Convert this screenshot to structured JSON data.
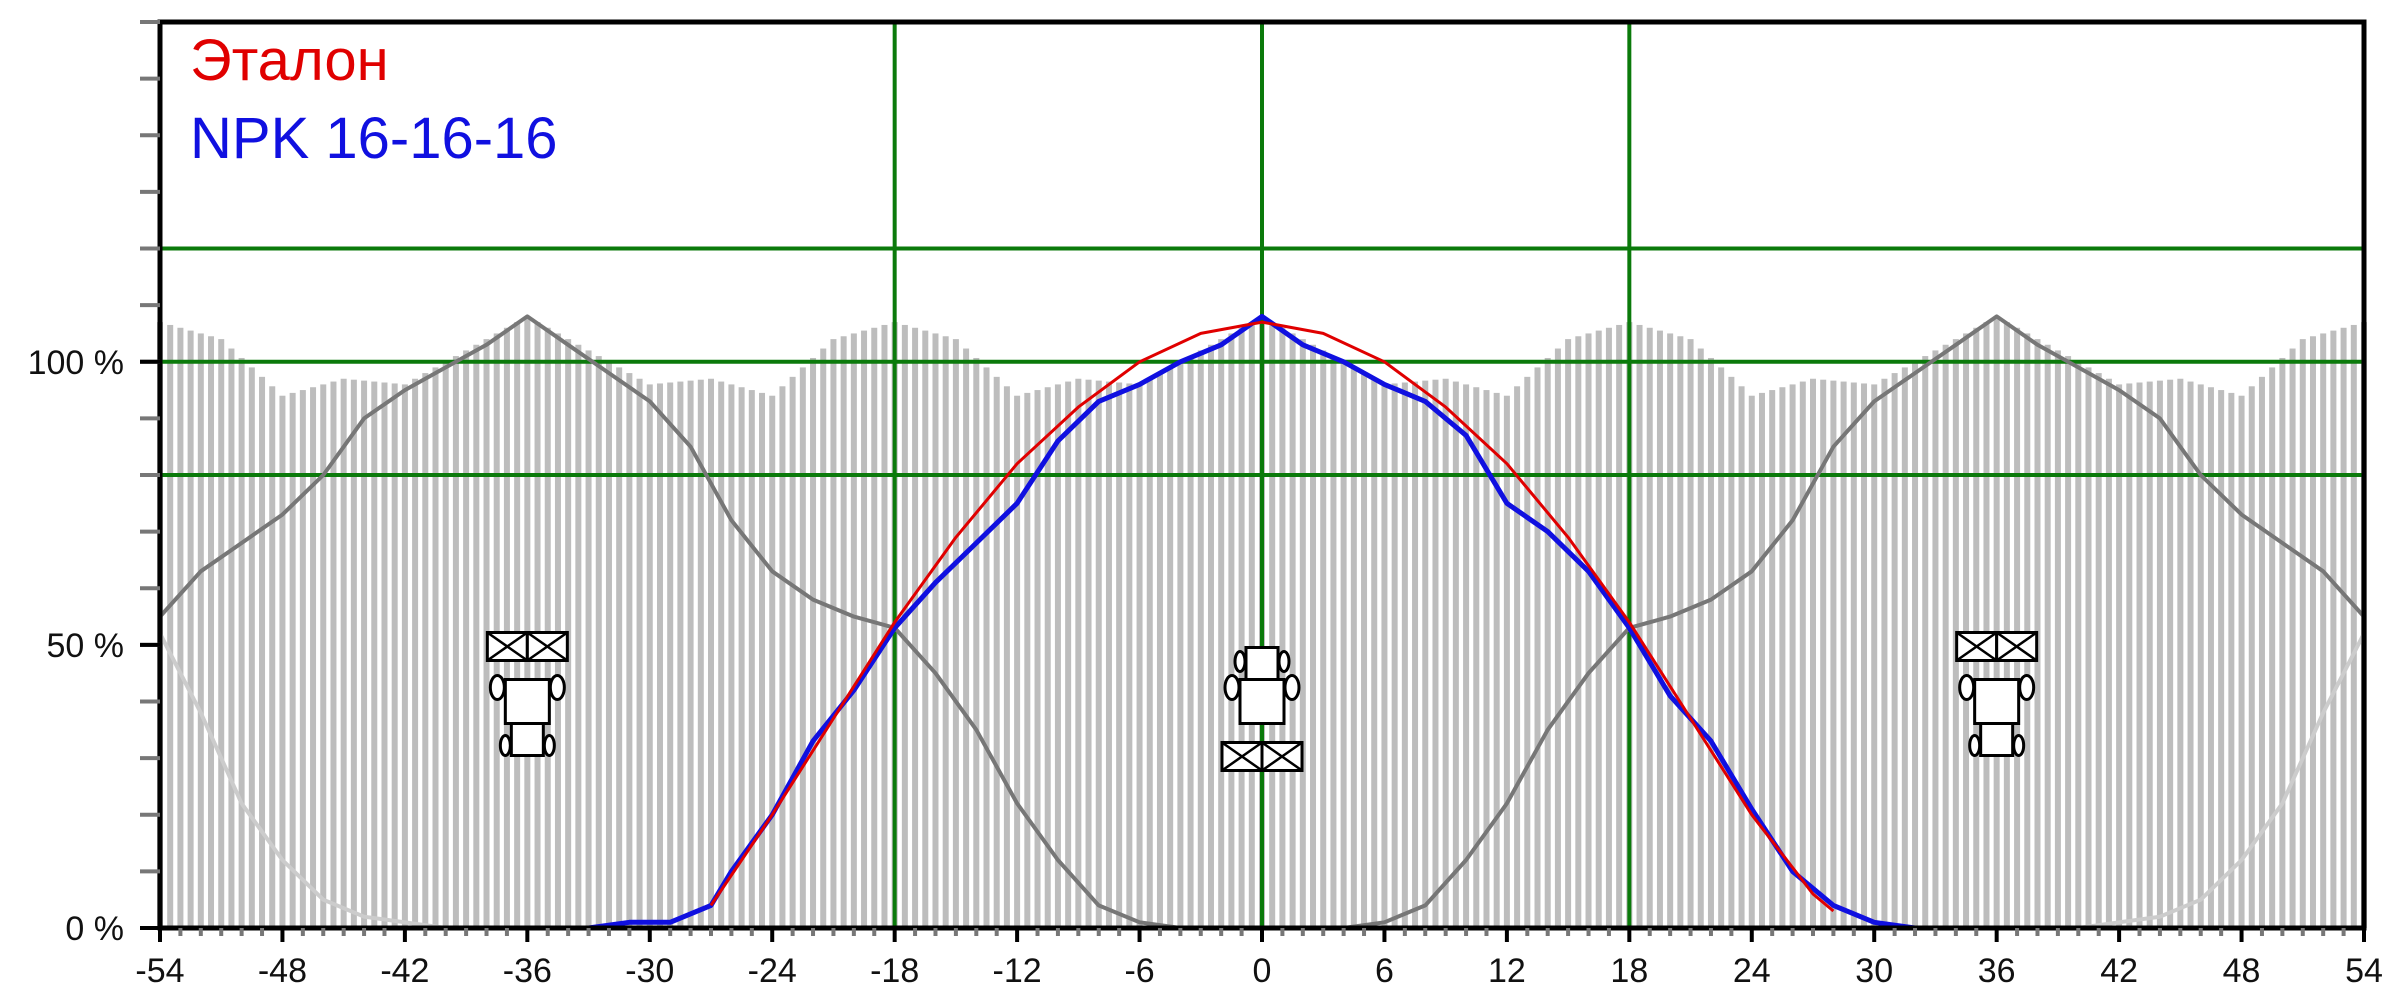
{
  "chart_data": {
    "type": "line",
    "title": "",
    "xlabel": "",
    "ylabel": "",
    "xlim": [
      -54,
      54
    ],
    "ylim": [
      0,
      160
    ],
    "x_ticks": [
      -54,
      -48,
      -42,
      -36,
      -30,
      -24,
      -18,
      -12,
      -6,
      0,
      6,
      12,
      18,
      24,
      30,
      36,
      42,
      48,
      54
    ],
    "y_ticks": [
      {
        "value": 0,
        "label": "0 %"
      },
      {
        "value": 50,
        "label": "50 %"
      },
      {
        "value": 100,
        "label": "100 %"
      }
    ],
    "green_gridlines": {
      "x": [
        -18,
        0,
        18
      ],
      "y": [
        80,
        100,
        120
      ]
    },
    "legend": {
      "position": "top-left",
      "entries": [
        {
          "label": "Эталон",
          "color": "#e00000"
        },
        {
          "label": "NPK 16-16-16",
          "color": "#1010e0"
        }
      ]
    },
    "series": [
      {
        "name": "Эталон",
        "color": "#e00000",
        "x": [
          -27,
          -24,
          -21,
          -18,
          -15,
          -12,
          -9,
          -6,
          -3,
          0,
          3,
          6,
          9,
          12,
          15,
          18,
          21,
          24,
          27,
          28
        ],
        "y": [
          4,
          20,
          37,
          54,
          69,
          82,
          92,
          100,
          105,
          107,
          105,
          100,
          92,
          82,
          69,
          54,
          37,
          20,
          6,
          3
        ]
      },
      {
        "name": "NPK 16-16-16",
        "color": "#1010e0",
        "x": [
          -37,
          -33,
          -31,
          -29,
          -27,
          -26,
          -24,
          -22,
          -20,
          -18,
          -16,
          -14,
          -12,
          -10,
          -8,
          -6,
          -4,
          -2,
          0,
          2,
          4,
          6,
          8,
          10,
          12,
          14,
          16,
          18,
          20,
          22,
          24,
          26,
          28,
          30,
          32,
          37
        ],
        "y": [
          0,
          0,
          1,
          1,
          4,
          10,
          20,
          33,
          42,
          53,
          61,
          68,
          75,
          86,
          93,
          96,
          100,
          103,
          108,
          103,
          100,
          96,
          93,
          87,
          75,
          70,
          63,
          53,
          41,
          33,
          21,
          10,
          4,
          1,
          0,
          0
        ]
      },
      {
        "name": "",
        "color": "#777777",
        "x": [
          -54,
          -52,
          -50,
          -48,
          -46,
          -44,
          -42,
          -40,
          -38,
          -36,
          -34,
          -32,
          -30,
          -28,
          -26,
          -24,
          -22,
          -20,
          -18,
          -16,
          -14,
          -12,
          -10,
          -8,
          -6,
          -4,
          -2,
          0
        ],
        "y": [
          55,
          63,
          68,
          73,
          80,
          90,
          95,
          99,
          103,
          108,
          103,
          98,
          93,
          85,
          72,
          63,
          58,
          55,
          53,
          45,
          35,
          22,
          12,
          4,
          1,
          0,
          0,
          0
        ]
      },
      {
        "name": "",
        "color": "#777777",
        "x": [
          0,
          2,
          4,
          6,
          8,
          10,
          12,
          14,
          16,
          18,
          20,
          22,
          24,
          26,
          28,
          30,
          32,
          34,
          36,
          38,
          40,
          42,
          44,
          46,
          48,
          50,
          52,
          54
        ],
        "y": [
          0,
          0,
          0,
          1,
          4,
          12,
          22,
          35,
          45,
          53,
          55,
          58,
          63,
          72,
          85,
          93,
          98,
          103,
          108,
          103,
          99,
          95,
          90,
          80,
          73,
          68,
          63,
          55
        ]
      },
      {
        "name": "",
        "color": "#cccccc",
        "x": [
          -54,
          -52,
          -50,
          -48,
          -46,
          -44,
          -42,
          -40
        ],
        "y": [
          52,
          38,
          22,
          12,
          5,
          2,
          1,
          0
        ]
      },
      {
        "name": "",
        "color": "#cccccc",
        "x": [
          40,
          42,
          44,
          46,
          48,
          50,
          52,
          54
        ],
        "y": [
          0,
          1,
          2,
          5,
          12,
          22,
          38,
          52
        ]
      }
    ],
    "bars": {
      "color": "#bdbdbd",
      "x": [
        -54,
        -51,
        -48,
        -45,
        -42,
        -39,
        -36,
        -33,
        -30,
        -27,
        -24,
        -21,
        -18,
        -15,
        -12,
        -9,
        -6,
        -3,
        0,
        3,
        6,
        9,
        12,
        15,
        18,
        21,
        24,
        27,
        30,
        33,
        36,
        39,
        42,
        45,
        48,
        51,
        54
      ],
      "y": [
        107,
        104,
        94,
        97,
        96,
        102,
        108,
        102,
        96,
        97,
        94,
        104,
        107,
        104,
        94,
        97,
        96,
        102,
        108,
        102,
        96,
        97,
        94,
        104,
        107,
        104,
        94,
        97,
        96,
        102,
        108,
        102,
        96,
        97,
        94,
        104,
        107
      ]
    }
  },
  "icons": {
    "left": {
      "name": "tractor-spreader-icon",
      "x": -36,
      "y": 40,
      "orientation": "down"
    },
    "center": {
      "name": "tractor-spreader-icon",
      "x": 0,
      "y": 40,
      "orientation": "up"
    },
    "right": {
      "name": "tractor-spreader-icon",
      "x": 36,
      "y": 40,
      "orientation": "down"
    }
  }
}
